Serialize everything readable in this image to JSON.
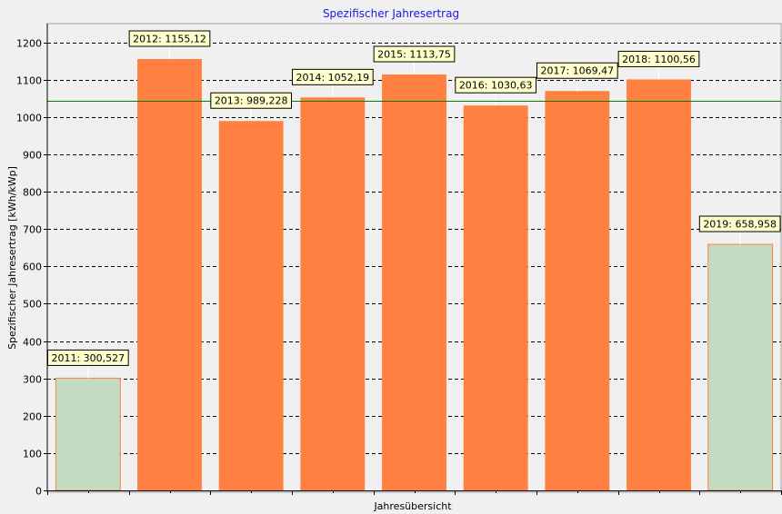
{
  "chart_data": {
    "type": "bar",
    "title": "Spezifischer Jahresertrag",
    "xlabel": "Jahresübersicht",
    "ylabel": "Spezifischer Jahresertrag [kWh/kWp]",
    "ylim": [
      0,
      1250
    ],
    "yticks": [
      0,
      100,
      200,
      300,
      400,
      500,
      600,
      700,
      800,
      900,
      1000,
      1100,
      1200
    ],
    "grid": true,
    "categories": [
      "2011",
      "2012",
      "2013",
      "2014",
      "2015",
      "2016",
      "2017",
      "2018",
      "2019"
    ],
    "values": [
      300.527,
      1155.12,
      989.228,
      1052.19,
      1113.75,
      1030.63,
      1069.47,
      1100.56,
      658.958
    ],
    "data_labels": [
      "2011:  300,527",
      "2012:  1155,12",
      "2013:  989,228",
      "2014:  1052,19",
      "2015:  1113,75",
      "2016:  1030,63",
      "2017:  1069,47",
      "2018:  1100,56",
      "2019:  658,958"
    ],
    "bar_styles": [
      "partial",
      "full",
      "full",
      "full",
      "full",
      "full",
      "full",
      "full",
      "partial"
    ],
    "reference_line": 1042,
    "colors": {
      "full": "#ff8040",
      "partial_fill": "#c1dcc1",
      "partial_stroke": "#ff8040",
      "reference_line": "#008000",
      "title": "#1a1ae6",
      "plot_background": "#f0f0f0"
    }
  }
}
